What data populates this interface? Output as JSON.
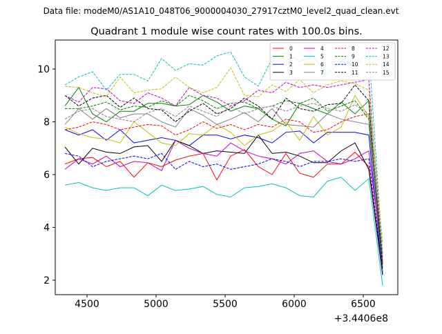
{
  "suptitle": "Data file: modeM0/AS1A10_048T06_9000004030_27917cztM0_level2_quad_clean.evt",
  "chart_data": {
    "type": "line",
    "title": "Quadrant 1 module wise count rates with 100.0s bins.",
    "xlabel": "",
    "ylabel": "",
    "x_offset_label": "+3.4406e8",
    "xlim": [
      4270,
      6750
    ],
    "ylim": [
      1.45,
      11.1
    ],
    "x_ticks": [
      4500,
      5000,
      5500,
      6000,
      6500
    ],
    "y_ticks": [
      2,
      4,
      6,
      8,
      10
    ],
    "grid": false,
    "legend_position": "top-right",
    "x": [
      4340,
      4440,
      4540,
      4640,
      4740,
      4840,
      4940,
      5040,
      5140,
      5240,
      5340,
      5440,
      5540,
      5640,
      5740,
      5840,
      5940,
      6040,
      6140,
      6240,
      6340,
      6440,
      6540,
      6640
    ],
    "series": [
      {
        "name": "0",
        "color": "#ff0000",
        "dash": "solid",
        "values": [
          6.4,
          6.6,
          6.65,
          6.3,
          6.5,
          5.9,
          6.45,
          6.3,
          6.55,
          6.7,
          6.8,
          5.8,
          6.7,
          6.95,
          6.3,
          6.0,
          6.8,
          6.05,
          5.9,
          6.4,
          6.4,
          6.85,
          6.3,
          2.3
        ]
      },
      {
        "name": "1",
        "color": "#008000",
        "dash": "solid",
        "values": [
          8.6,
          9.3,
          8.3,
          8.0,
          8.4,
          8.4,
          8.7,
          8.7,
          8.6,
          8.65,
          9.0,
          8.75,
          8.4,
          8.6,
          8.5,
          8.1,
          7.85,
          8.7,
          8.5,
          8.3,
          8.75,
          8.3,
          8.8,
          2.6
        ]
      },
      {
        "name": "2",
        "color": "#0000ff",
        "dash": "solid",
        "values": [
          7.7,
          7.5,
          7.7,
          7.3,
          7.7,
          7.2,
          7.3,
          7.4,
          7.3,
          7.1,
          7.5,
          7.5,
          7.35,
          7.5,
          7.4,
          7.2,
          7.6,
          7.65,
          7.2,
          7.6,
          7.6,
          7.6,
          7.5,
          2.2
        ]
      },
      {
        "name": "3",
        "color": "#000000",
        "dash": "solid",
        "values": [
          7.05,
          6.4,
          7.0,
          6.85,
          6.8,
          7.05,
          7.1,
          6.5,
          7.3,
          7.1,
          6.8,
          6.9,
          6.85,
          6.8,
          7.5,
          6.8,
          6.85,
          6.7,
          6.45,
          6.45,
          6.9,
          7.2,
          6.2,
          2.2
        ]
      },
      {
        "name": "4",
        "color": "#c000c0",
        "dash": "solid",
        "values": [
          6.2,
          6.6,
          6.4,
          6.7,
          6.3,
          6.5,
          6.45,
          6.15,
          7.3,
          7.0,
          6.8,
          6.7,
          7.2,
          6.9,
          6.7,
          6.6,
          6.4,
          6.8,
          6.9,
          6.5,
          6.4,
          6.6,
          6.9,
          2.7
        ]
      },
      {
        "name": "5",
        "color": "#00c0c0",
        "dash": "solid",
        "values": [
          5.6,
          5.7,
          5.5,
          5.4,
          5.5,
          5.5,
          5.2,
          5.6,
          5.4,
          5.45,
          5.55,
          5.25,
          5.15,
          5.5,
          5.55,
          5.65,
          5.5,
          5.2,
          5.15,
          5.75,
          5.9,
          5.4,
          5.85,
          1.8
        ]
      },
      {
        "name": "6",
        "color": "#c0c000",
        "dash": "solid",
        "values": [
          7.8,
          7.55,
          7.4,
          7.35,
          7.2,
          8.0,
          7.6,
          7.2,
          7.1,
          7.55,
          7.5,
          7.9,
          7.6,
          7.1,
          7.5,
          7.65,
          8.0,
          7.3,
          8.2,
          7.5,
          7.8,
          9.0,
          8.2,
          2.3
        ]
      },
      {
        "name": "7",
        "color": "#808080",
        "dash": "solid",
        "values": [
          7.9,
          8.5,
          8.1,
          8.5,
          8.15,
          8.3,
          8.3,
          8.0,
          7.8,
          8.5,
          8.25,
          7.9,
          8.1,
          8.35,
          8.0,
          8.5,
          7.9,
          7.85,
          7.8,
          8.3,
          8.1,
          8.0,
          7.9,
          2.5
        ]
      },
      {
        "name": "8",
        "color": "#ff0000",
        "dash": "dashed",
        "values": [
          7.7,
          7.8,
          8.0,
          7.9,
          7.7,
          7.8,
          7.9,
          7.85,
          7.5,
          7.7,
          8.0,
          7.75,
          7.9,
          7.7,
          7.9,
          7.8,
          8.1,
          8.0,
          7.6,
          7.7,
          8.0,
          8.2,
          8.3,
          2.6
        ]
      },
      {
        "name": "9",
        "color": "#008000",
        "dash": "dashed",
        "values": [
          8.5,
          8.5,
          8.6,
          8.75,
          8.45,
          8.6,
          8.55,
          8.8,
          8.6,
          9.0,
          8.8,
          8.5,
          8.7,
          8.75,
          8.5,
          8.6,
          8.8,
          8.7,
          8.9,
          8.4,
          8.6,
          8.8,
          8.1,
          2.6
        ]
      },
      {
        "name": "10",
        "color": "#0000ff",
        "dash": "dashed",
        "values": [
          6.8,
          6.7,
          6.3,
          6.5,
          6.6,
          6.7,
          6.6,
          6.8,
          6.2,
          6.5,
          6.3,
          6.4,
          6.2,
          6.3,
          6.4,
          6.6,
          6.5,
          6.3,
          6.5,
          6.5,
          6.6,
          6.5,
          6.6,
          2.3
        ]
      },
      {
        "name": "11",
        "color": "#000000",
        "dash": "dashed",
        "values": [
          9.0,
          8.6,
          8.9,
          9.0,
          8.55,
          8.9,
          8.5,
          8.45,
          8.0,
          8.4,
          8.7,
          8.3,
          8.5,
          8.9,
          8.6,
          8.1,
          8.9,
          8.5,
          8.4,
          8.65,
          8.7,
          9.4,
          8.8,
          2.4
        ]
      },
      {
        "name": "12",
        "color": "#c000c0",
        "dash": "dashed",
        "values": [
          9.0,
          8.75,
          9.3,
          9.25,
          8.8,
          8.7,
          9.1,
          8.9,
          8.6,
          9.3,
          9.0,
          8.9,
          8.6,
          8.8,
          9.2,
          9.1,
          9.5,
          9.3,
          9.4,
          9.3,
          9.4,
          9.5,
          9.6,
          2.8
        ]
      },
      {
        "name": "13",
        "color": "#00c0c0",
        "dash": "dashed",
        "values": [
          9.4,
          9.7,
          9.9,
          9.2,
          9.8,
          9.8,
          9.55,
          10.4,
          9.95,
          10.2,
          10.15,
          10.5,
          10.65,
          9.7,
          9.35,
          10.4,
          10.6,
          10.3,
          10.45,
          9.8,
          10.3,
          10.1,
          10.7,
          3.0
        ]
      },
      {
        "name": "14",
        "color": "#c0c000",
        "dash": "dashed",
        "values": [
          9.35,
          9.3,
          9.1,
          8.95,
          9.7,
          9.1,
          9.2,
          9.25,
          9.7,
          9.3,
          9.1,
          9.3,
          10.05,
          9.0,
          8.95,
          9.4,
          9.15,
          9.6,
          9.1,
          9.4,
          9.55,
          9.45,
          9.2,
          3.4
        ]
      },
      {
        "name": "15",
        "color": "#808080",
        "dash": "dashed",
        "values": [
          8.1,
          8.4,
          8.5,
          8.2,
          8.1,
          8.0,
          8.35,
          8.5,
          8.2,
          8.6,
          8.4,
          8.2,
          8.6,
          8.3,
          8.5,
          8.6,
          8.4,
          8.6,
          8.7,
          8.5,
          8.4,
          8.65,
          8.3,
          3.0
        ]
      }
    ]
  }
}
